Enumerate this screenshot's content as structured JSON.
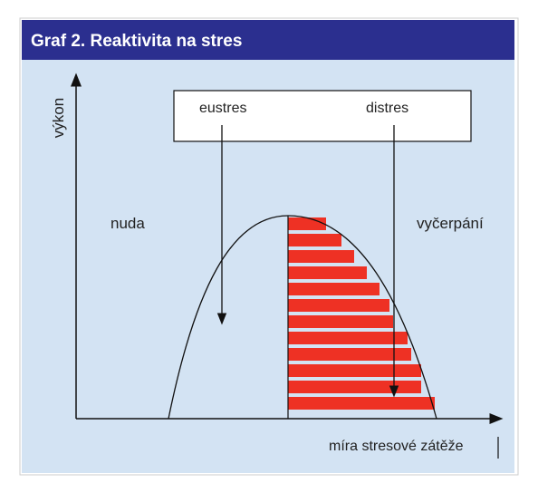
{
  "header": {
    "title": "Graf 2. Reaktivita na stres"
  },
  "diagram": {
    "y_axis_label": "výkon",
    "x_axis_label": "míra stresové zátěže",
    "box_labels": [
      "eustres",
      "distres"
    ],
    "left_label": "nuda",
    "right_label": "vyčerpání"
  }
}
